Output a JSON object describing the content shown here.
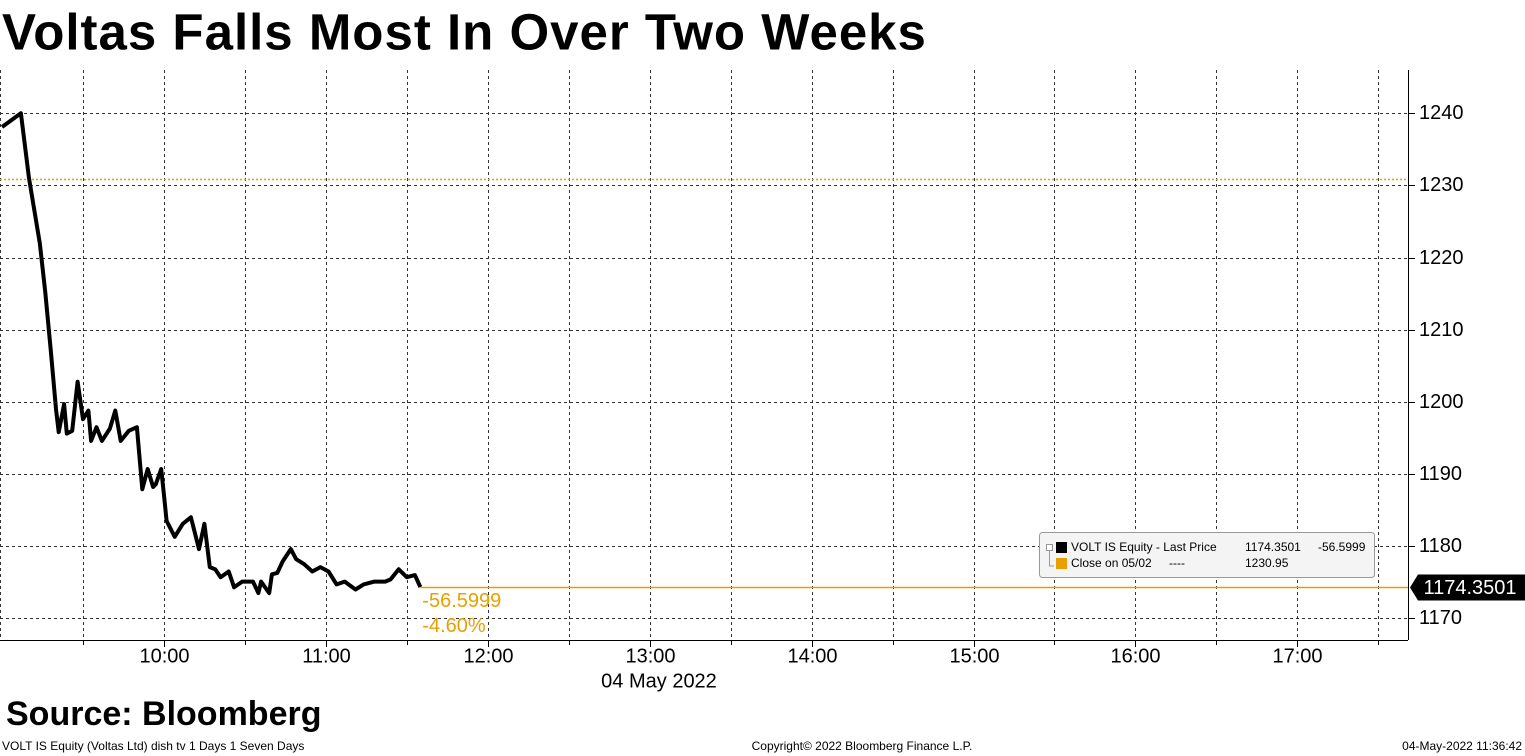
{
  "chart_data": {
    "type": "line",
    "title": "Voltas Falls Most In Over Two Weeks",
    "x_label": "04 May 2022",
    "source": "Source: Bloomberg",
    "footer_left": "VOLT IS Equity (Voltas Ltd) dish tv 1 Days 1 Seven Days",
    "footer_center": "Copyright© 2022 Bloomberg Finance L.P.",
    "footer_right": "04-May-2022 11:36:42",
    "x": [
      "09:00",
      "09:07",
      "09:10",
      "09:14",
      "09:16",
      "09:18",
      "09:20",
      "09:21",
      "09:23",
      "09:24",
      "09:26",
      "09:28",
      "09:30",
      "09:32",
      "09:33",
      "09:35",
      "09:37",
      "09:40",
      "09:42",
      "09:44",
      "09:47",
      "09:50",
      "09:52",
      "09:54",
      "09:56",
      "09:57",
      "09:59",
      "10:00",
      "10:01",
      "10:04",
      "10:07",
      "10:10",
      "10:13",
      "10:15",
      "10:17",
      "10:19",
      "10:21",
      "10:24",
      "10:26",
      "10:29",
      "10:33",
      "10:35",
      "10:36",
      "10:39",
      "10:40",
      "10:42",
      "10:44",
      "10:47",
      "10:49",
      "10:52",
      "10:55",
      "10:58",
      "11:01",
      "11:04",
      "11:07",
      "11:11",
      "11:14",
      "11:18",
      "11:22",
      "11:24",
      "11:27",
      "11:30",
      "11:33",
      "11:35"
    ],
    "series": [
      {
        "name": "VOLT IS Equity - Last Price",
        "color": "#000000",
        "values": [
          1238.1,
          1240,
          1231,
          1222,
          1215.3,
          1207.4,
          1199,
          1195.8,
          1199.7,
          1195.6,
          1196,
          1202.8,
          1197.6,
          1198.8,
          1194.6,
          1196.5,
          1194.6,
          1196.3,
          1198.8,
          1194.6,
          1196,
          1196.5,
          1187.9,
          1190.7,
          1188.2,
          1188.6,
          1190.7,
          1187.2,
          1183.5,
          1181.3,
          1183.1,
          1184,
          1179.6,
          1183.1,
          1177.1,
          1176.8,
          1175.7,
          1176.5,
          1174.3,
          1175.1,
          1175.1,
          1173.5,
          1175.1,
          1173.5,
          1176.1,
          1176.3,
          1177.9,
          1179.6,
          1178.2,
          1177.5,
          1176.5,
          1177.1,
          1176.5,
          1174.7,
          1175.1,
          1174,
          1174.7,
          1175.1,
          1175.1,
          1175.4,
          1176.8,
          1175.7,
          1176,
          1174.35
        ]
      }
    ],
    "last_price": 1174.3501,
    "change": -56.5999,
    "change_pct": {
      "value": -4.6,
      "label": "-4.60%"
    },
    "reference_line": {
      "name": "Close on 05/02",
      "value": 1230.95,
      "color": "#e8a000",
      "legend_dashes": "----"
    },
    "xlim": [
      "09:00",
      "17:41"
    ],
    "xticks": [
      "10:00",
      "11:00",
      "12:00",
      "13:00",
      "14:00",
      "15:00",
      "16:00",
      "17:00"
    ],
    "x_minor_ticks": [
      "09:30",
      "10:30",
      "11:30",
      "12:30",
      "13:30",
      "14:30",
      "15:30",
      "16:30",
      "17:30"
    ],
    "ylim": [
      1167,
      1246
    ],
    "yticks": [
      1170,
      1180,
      1190,
      1200,
      1210,
      1220,
      1230,
      1240
    ],
    "grid": true
  }
}
